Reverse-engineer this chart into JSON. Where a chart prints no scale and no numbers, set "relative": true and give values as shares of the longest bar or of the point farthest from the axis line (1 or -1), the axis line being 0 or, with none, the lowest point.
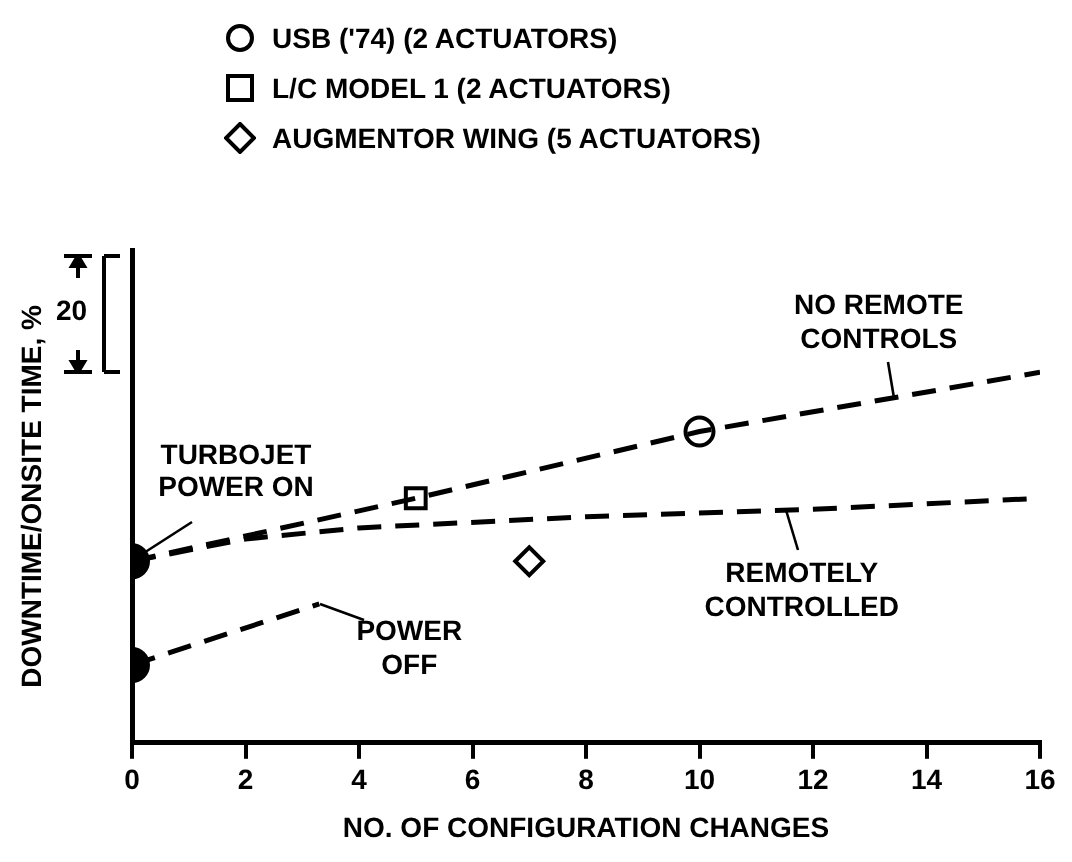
{
  "chart_data": {
    "type": "line",
    "relative": true,
    "xlabel": "NO. OF CONFIGURATION CHANGES",
    "ylabel": "DOWNTIME/ONSITE TIME, %",
    "xlim": [
      0,
      16
    ],
    "xticks": [
      0,
      2,
      4,
      6,
      8,
      10,
      12,
      14,
      16
    ],
    "grid": false,
    "legend": "top",
    "line_style": "dashed",
    "marker": "none",
    "annotations": [
      "20",
      {
        "text": "TURBOJET POWER ON",
        "x": 0,
        "y": 0.49
      }
    ],
    "series": [
      {
        "name": "NO REMOTE CONTROLS",
        "color": "#000000",
        "x": [
          0,
          5,
          10,
          16
        ],
        "values": [
          0.49,
          0.66,
          0.84,
          1.0
        ]
      },
      {
        "name": "REMOTELY CONTROLLED",
        "color": "#000000",
        "x": [
          0,
          2,
          4,
          8,
          12,
          16
        ],
        "values": [
          0.49,
          0.55,
          0.58,
          0.61,
          0.63,
          0.66
        ]
      },
      {
        "name": "POWER OFF",
        "color": "#000000",
        "x": [
          0,
          3.3
        ],
        "values": [
          0.21,
          0.375
        ]
      },
      {
        "type": "scatter",
        "color": "#000000",
        "marker": "circle",
        "x": [
          0,
          0
        ],
        "values": [
          0.49,
          0.21
        ]
      },
      {
        "type": "scatter",
        "name": "USB ('74) (2 ACTUATORS)",
        "color": "#000000",
        "marker": "circle",
        "x": [
          10
        ],
        "values": [
          0.84
        ]
      },
      {
        "type": "scatter",
        "name": "L/C MODEL 1 (2 ACTUATORS)",
        "color": "#000000",
        "marker": "square",
        "x": [
          5
        ],
        "values": [
          0.66
        ]
      },
      {
        "type": "scatter",
        "name": "AUGMENTOR WING (5 ACTUATORS)",
        "color": "#000000",
        "marker": "diamond",
        "x": [
          7
        ],
        "values": [
          0.49
        ]
      }
    ]
  }
}
